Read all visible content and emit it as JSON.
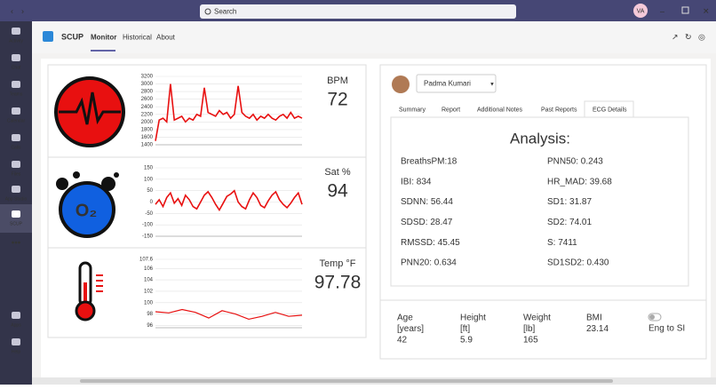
{
  "titlebar": {
    "search": "Search",
    "avatar": "VA"
  },
  "sidebar": [
    "Activity",
    "Chat",
    "Teams",
    "Calendar",
    "Calls",
    "Files",
    "App Studio",
    "SCUP",
    "Apps",
    "Help"
  ],
  "app": {
    "name": "SCUP",
    "tabs": [
      "Monitor",
      "Historical",
      "About"
    ]
  },
  "vitals": [
    {
      "label": "BPM",
      "value": 72,
      "chart": {
        "ylim": [
          1400,
          3200
        ],
        "yticks": [
          3200,
          3000,
          2800,
          2600,
          2400,
          2200,
          2000,
          1800,
          1600,
          1400
        ],
        "values": [
          1500,
          2050,
          2100,
          2000,
          3000,
          2050,
          2100,
          2150,
          2000,
          2100,
          2050,
          2200,
          2150,
          2900,
          2250,
          2200,
          2150,
          2300,
          2200,
          2250,
          2100,
          2200,
          2950,
          2250,
          2150,
          2100,
          2200,
          2050,
          2150,
          2100,
          2200,
          2100,
          2050,
          2150,
          2200,
          2100,
          2250,
          2100,
          2150,
          2100
        ]
      }
    },
    {
      "label": "Sat %",
      "value": 94,
      "chart": {
        "ylim": [
          -150,
          150
        ],
        "yticks": [
          150,
          100,
          50,
          0,
          -50,
          -100,
          -150
        ],
        "values": [
          -10,
          10,
          -20,
          20,
          40,
          -5,
          15,
          -15,
          30,
          10,
          -20,
          -30,
          0,
          30,
          45,
          20,
          -10,
          -35,
          -5,
          25,
          35,
          50,
          0,
          -20,
          -30,
          10,
          40,
          20,
          -15,
          -25,
          5,
          30,
          45,
          10,
          -10,
          -25,
          -5,
          20,
          40,
          -10
        ]
      }
    },
    {
      "label": "Temp °F",
      "value": 97.78,
      "chart": {
        "ylim": [
          95.6,
          107.6
        ],
        "yticks": [
          107.6,
          106,
          104,
          102,
          100,
          98,
          96
        ],
        "values": [
          98.4,
          98.2,
          98.8,
          98.3,
          97.3,
          98.6,
          98.0,
          97.1,
          97.6,
          98.3,
          97.6,
          97.8
        ]
      }
    }
  ],
  "patient": {
    "name": "Padma Kumari",
    "tabs": [
      "Summary",
      "Report",
      "Additional Notes",
      "Past Reports",
      "ECG Details"
    ]
  },
  "analysis": {
    "title": "Analysis:",
    "items": [
      [
        "BreathsPM:18",
        "PNN50: 0.243"
      ],
      [
        "IBI: 834",
        "HR_MAD: 39.68"
      ],
      [
        "SDNN: 56.44",
        "SD1: 31.87"
      ],
      [
        "SDSD: 28.47",
        "SD2: 74.01"
      ],
      [
        "RMSSD: 45.45",
        "S: 7411"
      ],
      [
        "PNN20: 0.634",
        "SD1SD2: 0.430"
      ]
    ]
  },
  "bio": {
    "items": [
      {
        "label": "Age",
        "unit": "[years]",
        "value": 42
      },
      {
        "label": "Height",
        "unit": "[ft]",
        "value": 5.9
      },
      {
        "label": "Weight",
        "unit": "[lb]",
        "value": 165
      },
      {
        "label": "BMI",
        "value": 23.14
      }
    ],
    "toggle": "Eng to SI"
  }
}
